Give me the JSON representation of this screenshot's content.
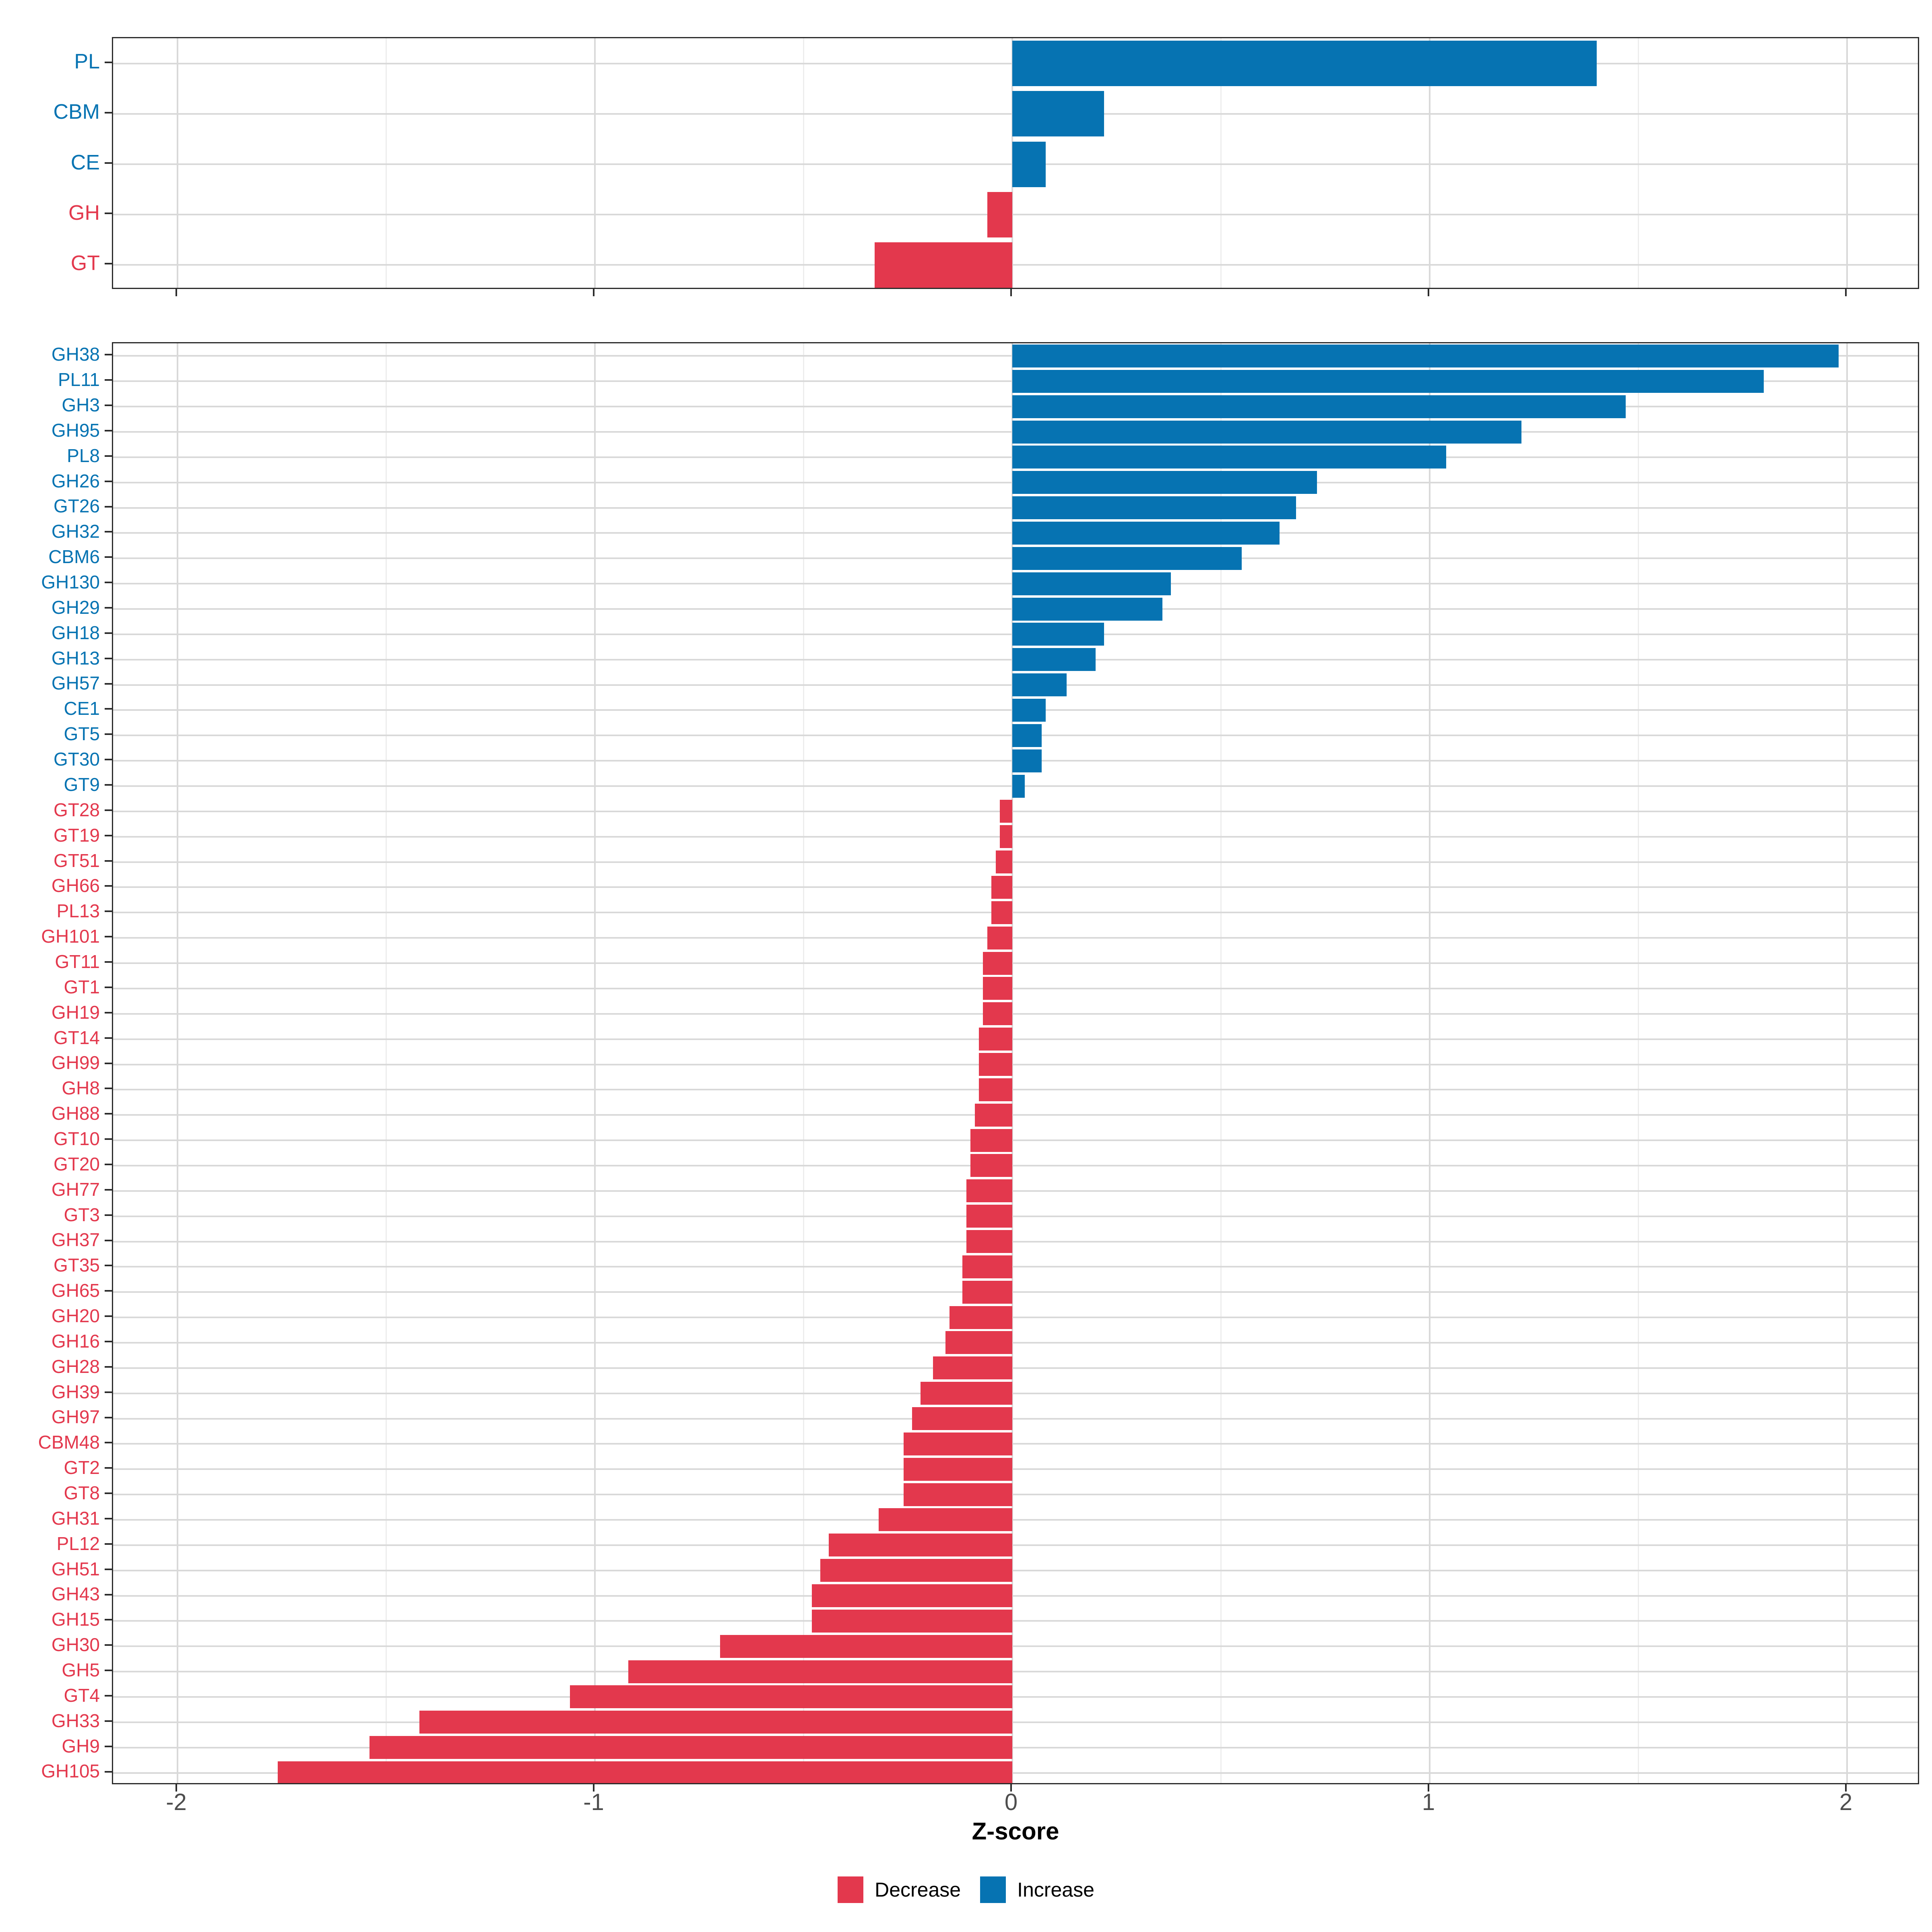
{
  "colors": {
    "increase": "#0673B2",
    "decrease": "#E3384D",
    "grid_major": "#D9D9D9",
    "grid_minor": "#EDEDED",
    "axis_text": "#4D4D4D",
    "panel_border": "#2B2B2B"
  },
  "axis": {
    "label": "Z-score",
    "ticks": [
      -2,
      -1,
      0,
      1,
      2
    ],
    "tick_labels": [
      "-2",
      "-1",
      "0",
      "1",
      "2"
    ],
    "minor_ticks": [
      -1.5,
      -0.5,
      0.5,
      1.5
    ],
    "range": [
      -2.16,
      2.18
    ]
  },
  "legend": {
    "items": [
      {
        "label": "Decrease",
        "key": "decrease"
      },
      {
        "label": "Increase",
        "key": "increase"
      }
    ]
  },
  "chart_data": [
    {
      "id": "family-panel",
      "type": "bar",
      "orientation": "horizontal",
      "title": "",
      "xlabel": "Z-score",
      "ylabel": "",
      "xlim": [
        -2.16,
        2.18
      ],
      "grid": true,
      "categories": [
        "PL",
        "CBM",
        "CE",
        "GH",
        "GT"
      ],
      "values": [
        1.4,
        0.22,
        0.08,
        -0.06,
        -0.33
      ]
    },
    {
      "id": "subfamily-panel",
      "type": "bar",
      "orientation": "horizontal",
      "title": "",
      "xlabel": "Z-score",
      "ylabel": "",
      "xlim": [
        -2.16,
        2.18
      ],
      "grid": true,
      "categories": [
        "GH38",
        "PL11",
        "GH3",
        "GH95",
        "PL8",
        "GH26",
        "GT26",
        "GH32",
        "CBM6",
        "GH130",
        "GH29",
        "GH18",
        "GH13",
        "GH57",
        "CE1",
        "GT5",
        "GT30",
        "GT9",
        "GT28",
        "GT19",
        "GT51",
        "GH66",
        "PL13",
        "GH101",
        "GT11",
        "GT1",
        "GH19",
        "GT14",
        "GH99",
        "GH8",
        "GH88",
        "GT10",
        "GT20",
        "GH77",
        "GT3",
        "GH37",
        "GT35",
        "GH65",
        "GH20",
        "GH16",
        "GH28",
        "GH39",
        "GH97",
        "CBM48",
        "GT2",
        "GT8",
        "GH31",
        "PL12",
        "GH51",
        "GH43",
        "GH15",
        "GH30",
        "GH5",
        "GT4",
        "GH33",
        "GH9",
        "GH105"
      ],
      "values": [
        1.98,
        1.8,
        1.47,
        1.22,
        1.04,
        0.73,
        0.68,
        0.64,
        0.55,
        0.38,
        0.36,
        0.22,
        0.2,
        0.13,
        0.08,
        0.07,
        0.07,
        0.03,
        -0.03,
        -0.03,
        -0.04,
        -0.05,
        -0.05,
        -0.06,
        -0.07,
        -0.07,
        -0.07,
        -0.08,
        -0.08,
        -0.08,
        -0.09,
        -0.1,
        -0.1,
        -0.11,
        -0.11,
        -0.11,
        -0.12,
        -0.12,
        -0.15,
        -0.16,
        -0.19,
        -0.22,
        -0.24,
        -0.26,
        -0.26,
        -0.26,
        -0.32,
        -0.44,
        -0.46,
        -0.48,
        -0.48,
        -0.7,
        -0.92,
        -1.06,
        -1.42,
        -1.54,
        -1.76
      ]
    }
  ]
}
